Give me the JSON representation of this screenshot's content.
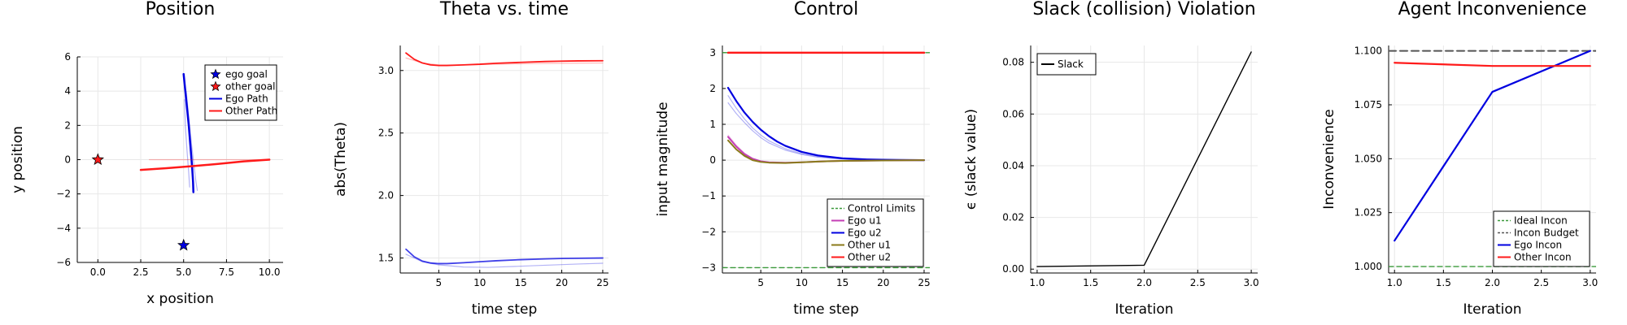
{
  "colors": {
    "ego": "#0000e0",
    "other": "#ff1a1a",
    "green": "#3a9a3a",
    "magenta": "#c43fb6",
    "olive": "#8a7a1a",
    "gray": "#555555",
    "black": "#000000",
    "grid": "#e8e8e8"
  },
  "chart_data": [
    {
      "type": "line",
      "title": "Position",
      "xlabel": "x position",
      "ylabel": "y position",
      "xlim": [
        -1.2,
        10.8
      ],
      "ylim": [
        -6,
        6
      ],
      "xticks": [
        0,
        2.5,
        5,
        7.5,
        10
      ],
      "xtick_labels": [
        "0.0",
        "2.5",
        "5.0",
        "7.5",
        "10.0"
      ],
      "yticks": [
        -6,
        -4,
        -2,
        0,
        2,
        4,
        6
      ],
      "ytick_labels": [
        "−6",
        "−4",
        "−2",
        "0",
        "2",
        "4",
        "6"
      ],
      "grid": true,
      "legend_position": "top-right",
      "legend": [
        {
          "label": "ego goal",
          "kind": "star",
          "color": "#0000e0"
        },
        {
          "label": "other goal",
          "kind": "star",
          "color": "#ff1a1a"
        },
        {
          "label": "Ego Path",
          "kind": "line",
          "color": "#0000e0"
        },
        {
          "label": "Other Path",
          "kind": "line",
          "color": "#ff1a1a"
        }
      ],
      "markers": [
        {
          "name": "ego goal",
          "x": 5,
          "y": -5,
          "color": "#0000e0"
        },
        {
          "name": "other goal",
          "x": 0,
          "y": 0,
          "color": "#ff1a1a"
        }
      ],
      "series": [
        {
          "name": "Ego Path",
          "color": "#0000e0",
          "width": 2.5,
          "opacity": 1,
          "x": [
            5.0,
            5.15,
            5.3,
            5.42,
            5.5,
            5.55,
            5.57
          ],
          "y": [
            5.0,
            3.5,
            2.0,
            0.5,
            -0.5,
            -1.3,
            -1.9
          ]
        },
        {
          "color": "#0000e0",
          "width": 1.2,
          "opacity": 0.3,
          "x": [
            5.15,
            5.3,
            5.45,
            5.6,
            5.72,
            5.8
          ],
          "y": [
            4.0,
            2.5,
            1.0,
            -0.3,
            -1.3,
            -1.8
          ]
        },
        {
          "color": "#0000e0",
          "width": 1.2,
          "opacity": 0.3,
          "x": [
            5.05,
            5.1,
            5.2,
            5.3,
            5.35
          ],
          "y": [
            3.5,
            2.0,
            0.5,
            -0.8,
            -1.6
          ]
        },
        {
          "name": "Other Path",
          "color": "#ff1a1a",
          "width": 2.5,
          "opacity": 1,
          "x": [
            2.5,
            4.0,
            5.5,
            7.0,
            8.5,
            10.0
          ],
          "y": [
            -0.6,
            -0.5,
            -0.38,
            -0.25,
            -0.1,
            0.0
          ]
        },
        {
          "color": "#ff1a1a",
          "width": 1.2,
          "opacity": 0.3,
          "x": [
            3.0,
            5.0,
            7.0,
            9.0,
            10.0
          ],
          "y": [
            0.0,
            0.0,
            0.0,
            0.0,
            0.0
          ]
        }
      ]
    },
    {
      "type": "line",
      "title": "Theta vs. time",
      "xlabel": "time step",
      "ylabel": "abs(Theta)",
      "xlim": [
        0.3,
        25.7
      ],
      "ylim": [
        1.38,
        3.2
      ],
      "xticks": [
        5,
        10,
        15,
        20,
        25
      ],
      "xtick_labels": [
        "5",
        "10",
        "15",
        "20",
        "25"
      ],
      "yticks": [
        1.5,
        2.0,
        2.5,
        3.0
      ],
      "ytick_labels": [
        "1.5",
        "2.0",
        "2.5",
        "3.0"
      ],
      "grid": true,
      "series": [
        {
          "color": "#ff1a1a",
          "width": 1.8,
          "opacity": 1,
          "x": [
            1,
            2,
            3,
            4,
            5,
            6,
            8,
            10,
            12,
            15,
            18,
            20,
            22,
            25
          ],
          "y": [
            3.14,
            3.09,
            3.06,
            3.045,
            3.04,
            3.04,
            3.045,
            3.05,
            3.058,
            3.065,
            3.072,
            3.075,
            3.077,
            3.078
          ]
        },
        {
          "color": "#ff1a1a",
          "width": 1.2,
          "opacity": 0.3,
          "x": [
            1,
            3,
            5,
            8,
            12,
            16,
            20,
            25
          ],
          "y": [
            3.1,
            3.06,
            3.045,
            3.045,
            3.05,
            3.055,
            3.058,
            3.06
          ]
        },
        {
          "color": "#0000e0",
          "width": 1.8,
          "opacity": 0.75,
          "x": [
            1,
            2,
            3,
            4,
            5,
            6,
            8,
            10,
            12,
            15,
            18,
            20,
            22,
            25
          ],
          "y": [
            1.57,
            1.51,
            1.475,
            1.46,
            1.455,
            1.455,
            1.462,
            1.47,
            1.478,
            1.487,
            1.493,
            1.496,
            1.498,
            1.5
          ]
        },
        {
          "color": "#0000e0",
          "width": 1.2,
          "opacity": 0.3,
          "x": [
            1,
            3,
            5,
            8,
            11,
            14,
            18,
            22,
            25
          ],
          "y": [
            1.53,
            1.47,
            1.445,
            1.428,
            1.425,
            1.432,
            1.442,
            1.452,
            1.458
          ]
        }
      ]
    },
    {
      "type": "line",
      "title": "Control",
      "xlabel": "time step",
      "ylabel": "input magnitude",
      "xlim": [
        0.3,
        25.7
      ],
      "ylim": [
        -3.15,
        3.2
      ],
      "xticks": [
        5,
        10,
        15,
        20,
        25
      ],
      "xtick_labels": [
        "5",
        "10",
        "15",
        "20",
        "25"
      ],
      "yticks": [
        -3,
        -2,
        -1,
        0,
        1,
        2,
        3
      ],
      "ytick_labels": [
        "−3",
        "−2",
        "−1",
        "0",
        "1",
        "2",
        "3"
      ],
      "grid": true,
      "legend_position": "bottom-right",
      "legend": [
        {
          "label": "Control Limits",
          "kind": "dash",
          "color": "#3a9a3a"
        },
        {
          "label": "Ego u1",
          "kind": "line",
          "color": "#c43fb6"
        },
        {
          "label": "Ego u2",
          "kind": "line",
          "color": "#0000e0"
        },
        {
          "label": "Other u1",
          "kind": "line",
          "color": "#8a7a1a"
        },
        {
          "label": "Other u2",
          "kind": "line",
          "color": "#ff1a1a"
        }
      ],
      "series": [
        {
          "name": "Control Limits",
          "color": "#3a9a3a",
          "width": 1.4,
          "opacity": 1,
          "dash": "6,4",
          "x": [
            0.3,
            25.7
          ],
          "y": [
            -3,
            -3
          ]
        },
        {
          "color": "#3a9a3a",
          "width": 1.4,
          "opacity": 1,
          "dash": "6,4",
          "x": [
            0.3,
            25.7
          ],
          "y": [
            3,
            3
          ]
        },
        {
          "name": "Other u2",
          "color": "#ff1a1a",
          "width": 2.5,
          "opacity": 1,
          "x": [
            1,
            25
          ],
          "y": [
            3,
            3
          ]
        },
        {
          "color": "#0000e0",
          "width": 1.2,
          "opacity": 0.3,
          "x": [
            1,
            2,
            3,
            4,
            5,
            6,
            8,
            10,
            12,
            15,
            18,
            20,
            25
          ],
          "y": [
            1.8,
            1.45,
            1.15,
            0.9,
            0.7,
            0.54,
            0.32,
            0.18,
            0.1,
            0.04,
            0.015,
            0.01,
            0.0
          ]
        },
        {
          "color": "#0000e0",
          "width": 1.2,
          "opacity": 0.3,
          "x": [
            1,
            2,
            3,
            4,
            5,
            6,
            8,
            10,
            12,
            15,
            18,
            20,
            25
          ],
          "y": [
            1.6,
            1.3,
            1.05,
            0.82,
            0.63,
            0.48,
            0.28,
            0.16,
            0.08,
            0.03,
            0.01,
            0.0,
            0.0
          ]
        },
        {
          "name": "Ego u2",
          "color": "#0000e0",
          "width": 2.2,
          "opacity": 1,
          "x": [
            1,
            2,
            3,
            4,
            5,
            6,
            7,
            8,
            10,
            12,
            15,
            18,
            20,
            22,
            25
          ],
          "y": [
            2.02,
            1.65,
            1.33,
            1.07,
            0.85,
            0.67,
            0.52,
            0.4,
            0.23,
            0.13,
            0.05,
            0.02,
            0.01,
            0.005,
            0.0
          ]
        },
        {
          "color": "#c43fb6",
          "width": 1.2,
          "opacity": 0.3,
          "x": [
            1,
            2,
            3,
            4,
            5,
            6,
            8,
            10,
            12,
            15,
            20,
            25
          ],
          "y": [
            0.7,
            0.42,
            0.2,
            0.05,
            -0.03,
            -0.06,
            -0.07,
            -0.06,
            -0.04,
            -0.02,
            -0.01,
            0.0
          ]
        },
        {
          "name": "Ego u1",
          "color": "#c43fb6",
          "width": 2,
          "opacity": 1,
          "x": [
            1,
            2,
            3,
            4,
            5,
            6,
            8,
            10,
            12,
            15,
            20,
            25
          ],
          "y": [
            0.65,
            0.38,
            0.17,
            0.04,
            -0.03,
            -0.06,
            -0.07,
            -0.06,
            -0.04,
            -0.02,
            -0.01,
            0.0
          ]
        },
        {
          "name": "Other u1",
          "color": "#8a7a1a",
          "width": 2,
          "opacity": 1,
          "x": [
            1,
            2,
            3,
            4,
            5,
            6,
            8,
            10,
            12,
            15,
            20,
            25
          ],
          "y": [
            0.55,
            0.3,
            0.12,
            0.0,
            -0.05,
            -0.07,
            -0.08,
            -0.06,
            -0.04,
            -0.02,
            -0.01,
            0.0
          ]
        }
      ]
    },
    {
      "type": "line",
      "title": "Slack (collision) Violation",
      "xlabel": "Iteration",
      "ylabel": "ϵ (slack value)",
      "xlim": [
        0.94,
        3.06
      ],
      "ylim": [
        -0.0015,
        0.0865
      ],
      "xticks": [
        1.0,
        1.5,
        2.0,
        2.5,
        3.0
      ],
      "xtick_labels": [
        "1.0",
        "1.5",
        "2.0",
        "2.5",
        "3.0"
      ],
      "yticks": [
        0,
        0.02,
        0.04,
        0.06,
        0.08
      ],
      "ytick_labels": [
        "0.00",
        "0.02",
        "0.04",
        "0.06",
        "0.08"
      ],
      "grid": true,
      "legend_position": "top-left",
      "legend": [
        {
          "label": "Slack",
          "kind": "line",
          "color": "#000000"
        }
      ],
      "series": [
        {
          "name": "Slack",
          "color": "#000000",
          "width": 1.4,
          "opacity": 1,
          "x": [
            1.0,
            2.0,
            3.0
          ],
          "y": [
            0.001,
            0.0015,
            0.084
          ]
        }
      ]
    },
    {
      "type": "line",
      "title": "Agent Inconvenience",
      "xlabel": "Iteration",
      "ylabel": "Inconvenience",
      "xlim": [
        0.94,
        3.06
      ],
      "ylim": [
        0.997,
        1.1025
      ],
      "xticks": [
        1.0,
        1.5,
        2.0,
        2.5,
        3.0
      ],
      "xtick_labels": [
        "1.0",
        "1.5",
        "2.0",
        "2.5",
        "3.0"
      ],
      "yticks": [
        1.0,
        1.025,
        1.05,
        1.075,
        1.1
      ],
      "ytick_labels": [
        "1.000",
        "1.025",
        "1.050",
        "1.075",
        "1.100"
      ],
      "grid": true,
      "legend_position": "bottom-right",
      "legend": [
        {
          "label": "Ideal Incon",
          "kind": "dash",
          "color": "#3a9a3a"
        },
        {
          "label": "Incon Budget",
          "kind": "dash",
          "color": "#555555"
        },
        {
          "label": "Ego Incon",
          "kind": "line",
          "color": "#0000e0"
        },
        {
          "label": "Other Incon",
          "kind": "line",
          "color": "#ff1a1a"
        }
      ],
      "series": [
        {
          "name": "Ideal Incon",
          "color": "#3a9a3a",
          "width": 1.4,
          "opacity": 1,
          "dash": "6,4",
          "x": [
            0.94,
            3.06
          ],
          "y": [
            1.0,
            1.0
          ]
        },
        {
          "name": "Incon Budget",
          "color": "#555555",
          "width": 2,
          "opacity": 1,
          "dash": "9,5",
          "x": [
            0.94,
            3.06
          ],
          "y": [
            1.1,
            1.1
          ]
        },
        {
          "name": "Ego Incon",
          "color": "#0000e0",
          "width": 2.2,
          "opacity": 1,
          "x": [
            1.0,
            2.0,
            3.0
          ],
          "y": [
            1.012,
            1.081,
            1.1
          ]
        },
        {
          "name": "Other Incon",
          "color": "#ff1a1a",
          "width": 2.2,
          "opacity": 1,
          "x": [
            1.0,
            2.0,
            3.0
          ],
          "y": [
            1.0945,
            1.093,
            1.093
          ]
        }
      ]
    }
  ]
}
